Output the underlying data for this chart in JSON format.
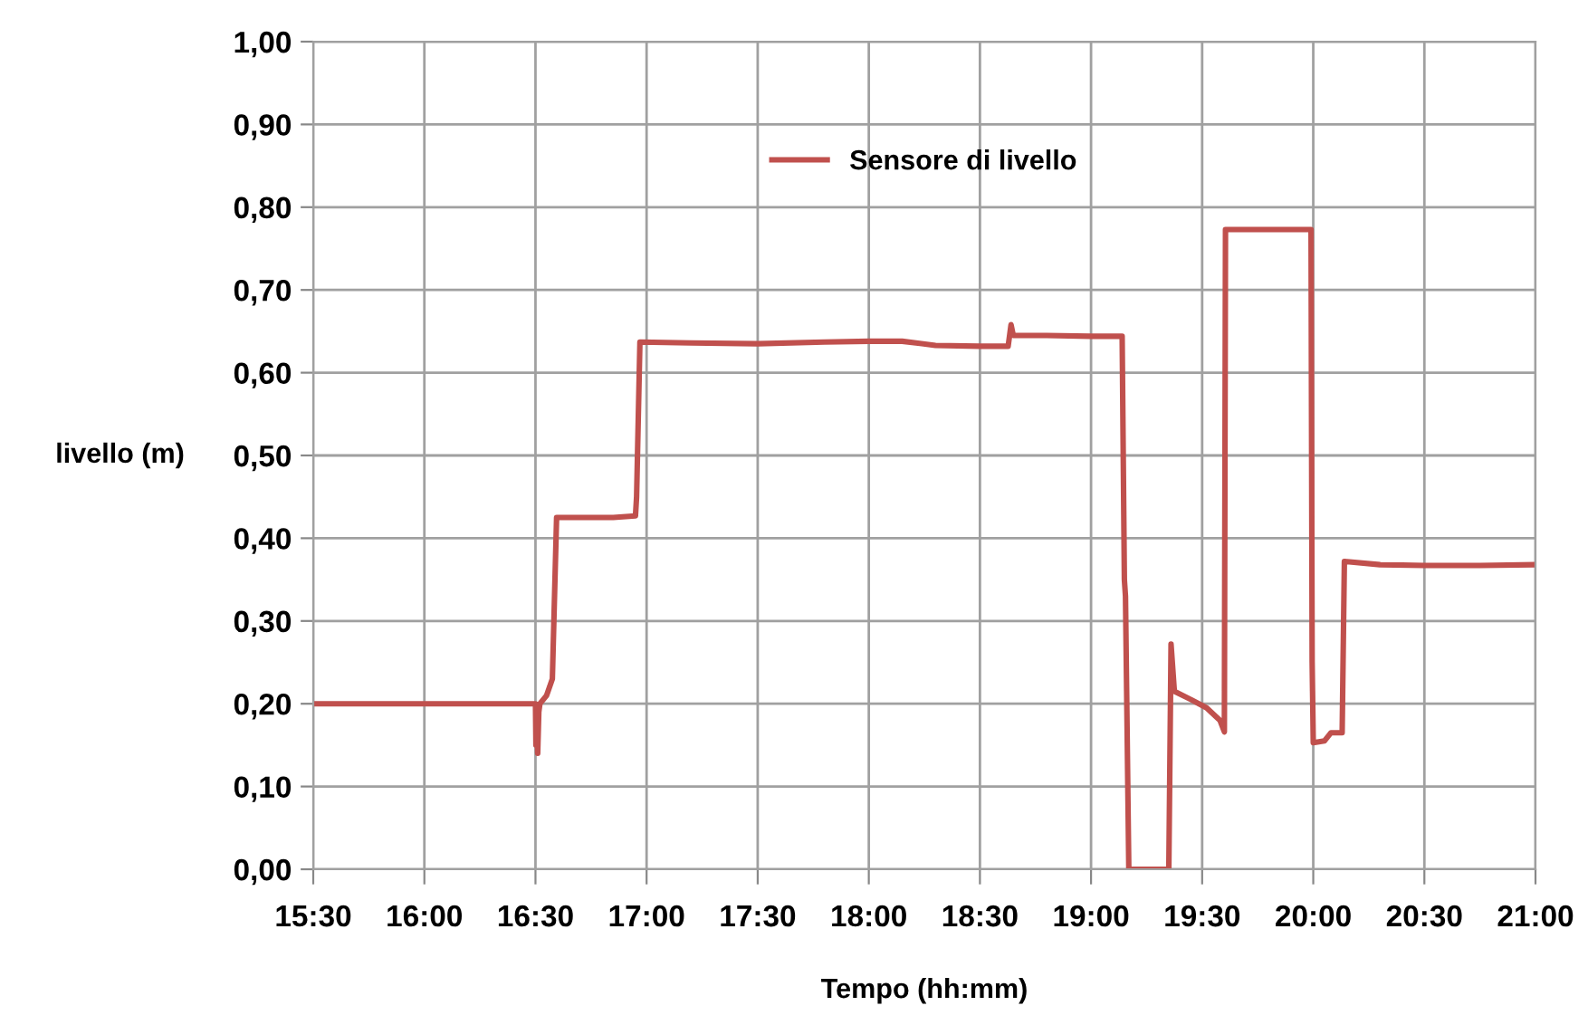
{
  "chart_data": {
    "type": "line",
    "xlabel": "Tempo (hh:mm)",
    "ylabel": "livello (m)",
    "series": [
      {
        "name": "Sensore di livello",
        "color": "#c0504d",
        "x": [
          15.5,
          16.0,
          16.5,
          16.502,
          16.505,
          16.51,
          16.515,
          16.52,
          16.55,
          16.576,
          16.595,
          16.7,
          16.85,
          16.95,
          16.955,
          16.97,
          17.2,
          17.5,
          17.8,
          18.0,
          18.15,
          18.3,
          18.5,
          18.627,
          18.64,
          18.65,
          18.8,
          19.0,
          19.14,
          19.15,
          19.155,
          19.17,
          19.25,
          19.35,
          19.36,
          19.375,
          19.45,
          19.52,
          19.58,
          19.6,
          19.605,
          19.8,
          19.99,
          19.995,
          20.0,
          20.05,
          20.08,
          20.13,
          20.14,
          20.3,
          20.5,
          20.75,
          21.0
        ],
        "values": [
          0.2,
          0.2,
          0.2,
          0.15,
          0.19,
          0.14,
          0.19,
          0.2,
          0.21,
          0.23,
          0.425,
          0.425,
          0.425,
          0.427,
          0.45,
          0.637,
          0.636,
          0.635,
          0.637,
          0.638,
          0.638,
          0.633,
          0.632,
          0.632,
          0.658,
          0.645,
          0.645,
          0.644,
          0.644,
          0.35,
          0.33,
          0.0,
          0.0,
          0.0,
          0.272,
          0.215,
          0.205,
          0.195,
          0.18,
          0.166,
          0.773,
          0.773,
          0.773,
          0.25,
          0.153,
          0.155,
          0.165,
          0.165,
          0.372,
          0.368,
          0.367,
          0.367,
          0.368
        ]
      }
    ],
    "xlim": [
      15.5,
      21.0
    ],
    "xticks": [
      {
        "value": 15.5,
        "label": "15:30"
      },
      {
        "value": 16.0,
        "label": "16:00"
      },
      {
        "value": 16.5,
        "label": "16:30"
      },
      {
        "value": 17.0,
        "label": "17:00"
      },
      {
        "value": 17.5,
        "label": "17:30"
      },
      {
        "value": 18.0,
        "label": "18:00"
      },
      {
        "value": 18.5,
        "label": "18:30"
      },
      {
        "value": 19.0,
        "label": "19:00"
      },
      {
        "value": 19.5,
        "label": "19:30"
      },
      {
        "value": 20.0,
        "label": "20:00"
      },
      {
        "value": 20.5,
        "label": "20:30"
      },
      {
        "value": 21.0,
        "label": "21:00"
      }
    ],
    "ylim": [
      0.0,
      1.0
    ],
    "yticks": [
      {
        "value": 0.0,
        "label": "0,00"
      },
      {
        "value": 0.1,
        "label": "0,10"
      },
      {
        "value": 0.2,
        "label": "0,20"
      },
      {
        "value": 0.3,
        "label": "0,30"
      },
      {
        "value": 0.4,
        "label": "0,40"
      },
      {
        "value": 0.5,
        "label": "0,50"
      },
      {
        "value": 0.6,
        "label": "0,60"
      },
      {
        "value": 0.7,
        "label": "0,70"
      },
      {
        "value": 0.8,
        "label": "0,80"
      },
      {
        "value": 0.9,
        "label": "0,90"
      },
      {
        "value": 1.0,
        "label": "1,00"
      }
    ],
    "grid": true,
    "legend": "top",
    "marker": "none",
    "line_style": "solid"
  }
}
